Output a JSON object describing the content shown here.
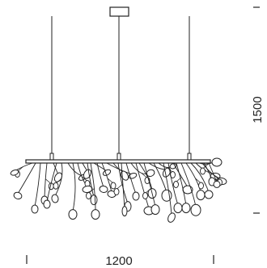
{
  "dimensions": {
    "width_label": "1200",
    "height_label": "1500"
  },
  "colors": {
    "line": "#222222",
    "background": "#ffffff"
  },
  "fixture": {
    "branch_count": 40
  }
}
